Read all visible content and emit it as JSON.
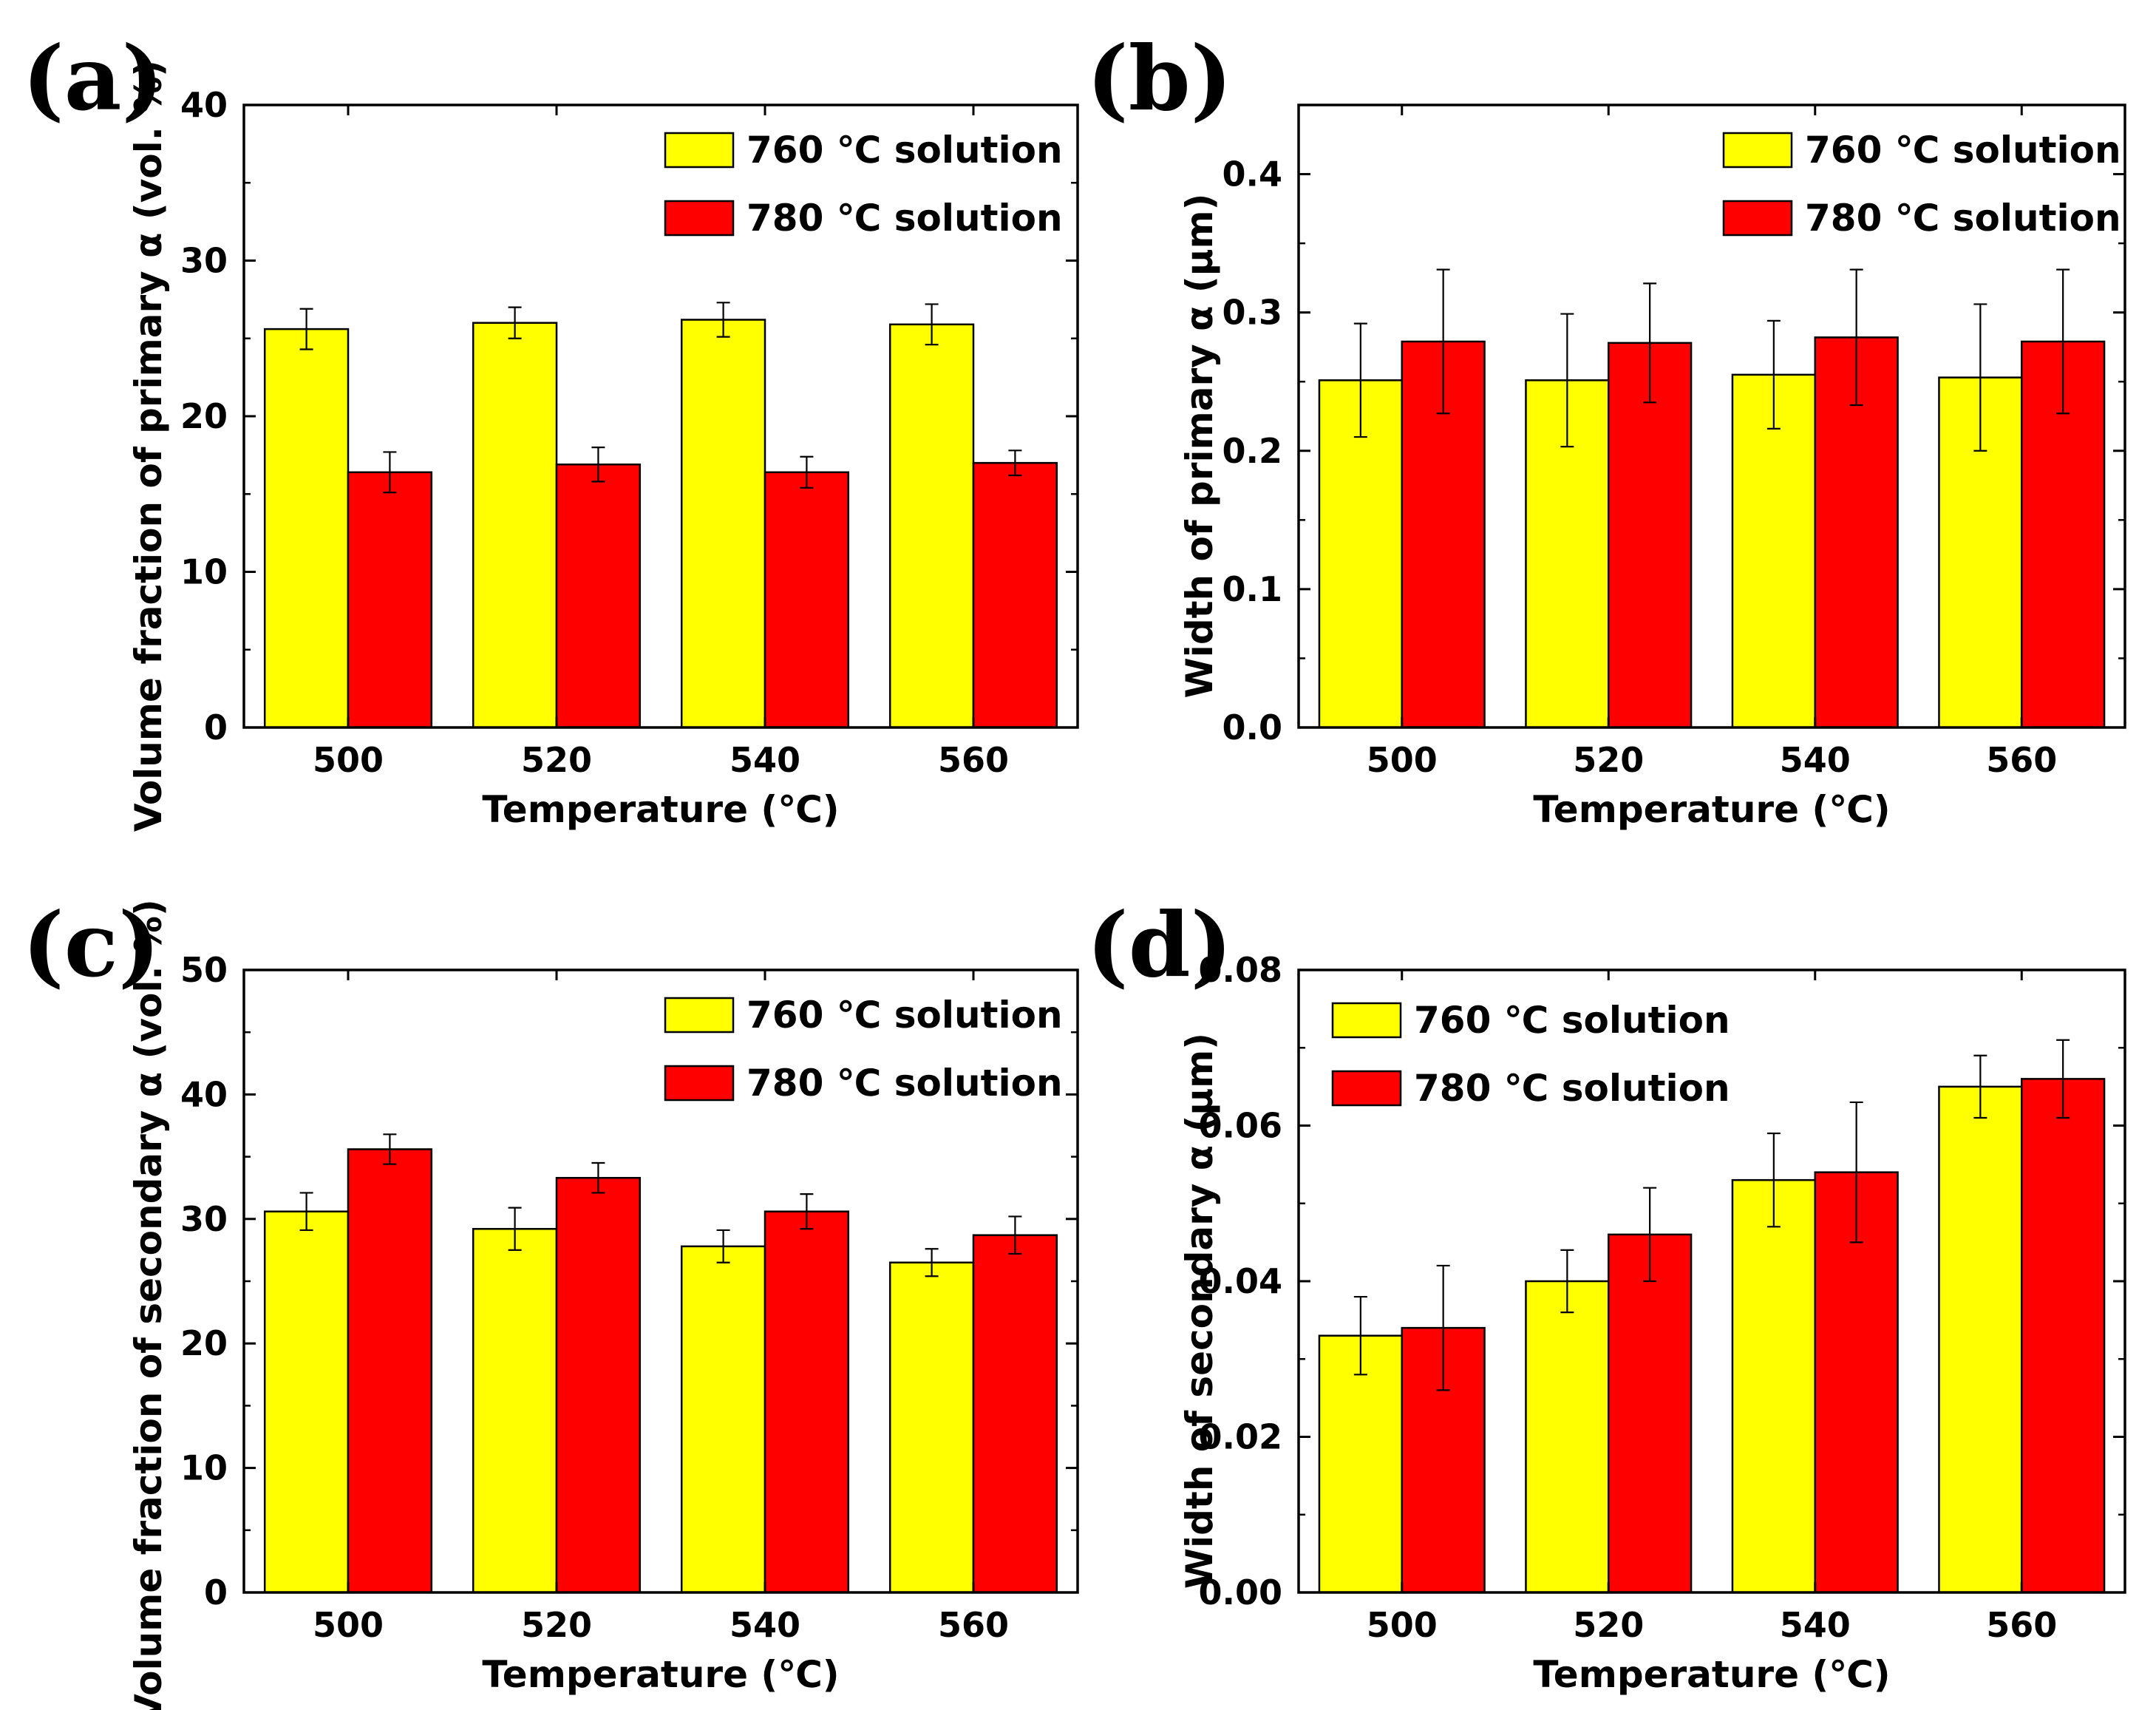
{
  "colors": {
    "series_760": "#ffff00",
    "series_780": "#ff0000",
    "axis": "#000000",
    "background": "#ffffff"
  },
  "chart_data": [
    {
      "type": "bar",
      "panel_label": "(a)",
      "categories": [
        "500",
        "520",
        "540",
        "560"
      ],
      "xlabel": "Temperature (℃)",
      "ylabel": "Volume fraction of primary α (vol. %)",
      "ylim": [
        0,
        40
      ],
      "yticks": [
        0,
        10,
        20,
        30,
        40
      ],
      "ytick_labels": [
        "0",
        "10",
        "20",
        "30",
        "40"
      ],
      "legend_position": "top-right",
      "series": [
        {
          "name": "760 ℃ solution",
          "values": [
            25.6,
            26.0,
            26.2,
            25.9
          ],
          "errors": [
            1.3,
            1.0,
            1.1,
            1.3
          ]
        },
        {
          "name": "780 ℃ solution",
          "values": [
            16.4,
            16.9,
            16.4,
            17.0
          ],
          "errors": [
            1.3,
            1.1,
            1.0,
            0.8
          ]
        }
      ]
    },
    {
      "type": "bar",
      "panel_label": "(b)",
      "categories": [
        "500",
        "520",
        "540",
        "560"
      ],
      "xlabel": "Temperature (℃)",
      "ylabel": "Width of primary α (μm)",
      "ylim": [
        0,
        0.45
      ],
      "yticks": [
        0,
        0.1,
        0.2,
        0.3,
        0.4
      ],
      "ytick_labels": [
        "0.0",
        "0.1",
        "0.2",
        "0.3",
        "0.4"
      ],
      "legend_position": "top-right",
      "series": [
        {
          "name": "760 ℃ solution",
          "values": [
            0.251,
            0.251,
            0.255,
            0.253
          ],
          "errors": [
            0.041,
            0.048,
            0.039,
            0.053
          ]
        },
        {
          "name": "780 ℃ solution",
          "values": [
            0.279,
            0.278,
            0.282,
            0.279
          ],
          "errors": [
            0.052,
            0.043,
            0.049,
            0.052
          ]
        }
      ]
    },
    {
      "type": "bar",
      "panel_label": "(c)",
      "categories": [
        "500",
        "520",
        "540",
        "560"
      ],
      "xlabel": "Temperature (℃)",
      "ylabel": "Volume fraction of secondary α (vol. %)",
      "ylim": [
        0,
        50
      ],
      "yticks": [
        0,
        10,
        20,
        30,
        40,
        50
      ],
      "ytick_labels": [
        "0",
        "10",
        "20",
        "30",
        "40",
        "50"
      ],
      "legend_position": "top-right",
      "series": [
        {
          "name": "760 ℃ solution",
          "values": [
            30.6,
            29.2,
            27.8,
            26.5
          ],
          "errors": [
            1.5,
            1.7,
            1.3,
            1.1
          ]
        },
        {
          "name": "780 ℃ solution",
          "values": [
            35.6,
            33.3,
            30.6,
            28.7
          ],
          "errors": [
            1.2,
            1.2,
            1.4,
            1.5
          ]
        }
      ]
    },
    {
      "type": "bar",
      "panel_label": "(d)",
      "categories": [
        "500",
        "520",
        "540",
        "560"
      ],
      "xlabel": "Temperature (℃)",
      "ylabel": "Width of secondary α (μm)",
      "ylim": [
        0,
        0.08
      ],
      "yticks": [
        0,
        0.02,
        0.04,
        0.06,
        0.08
      ],
      "ytick_labels": [
        "0.00",
        "0.02",
        "0.04",
        "0.06",
        "0.08"
      ],
      "legend_position": "top-left",
      "series": [
        {
          "name": "760 ℃ solution",
          "values": [
            0.033,
            0.04,
            0.053,
            0.065
          ],
          "errors": [
            0.005,
            0.004,
            0.006,
            0.004
          ]
        },
        {
          "name": "780 ℃ solution",
          "values": [
            0.034,
            0.046,
            0.054,
            0.066
          ],
          "errors": [
            0.008,
            0.006,
            0.009,
            0.005
          ]
        }
      ]
    }
  ]
}
